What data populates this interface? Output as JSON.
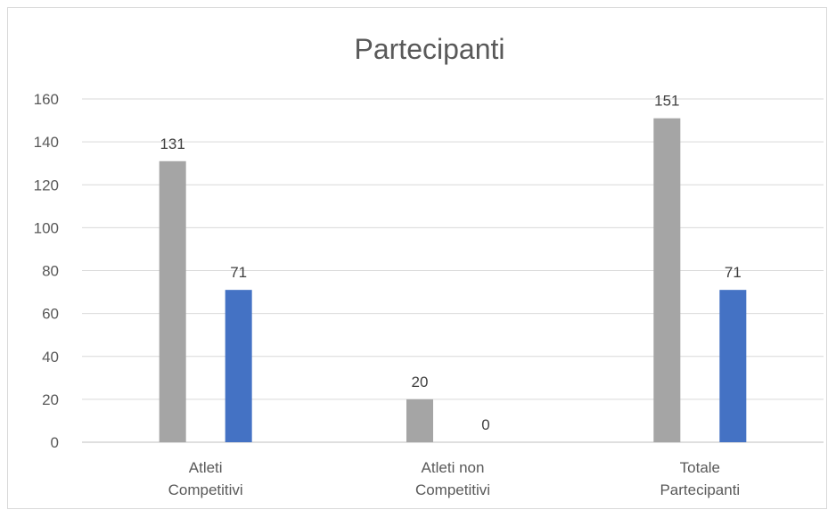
{
  "chart_data": {
    "type": "bar",
    "title": "Partecipanti",
    "categories": [
      [
        "Atleti",
        "Competitivi"
      ],
      [
        "Atleti non",
        "Competitivi"
      ],
      [
        "Totale",
        "Partecipanti"
      ]
    ],
    "series": [
      {
        "color": "#a5a5a5",
        "values": [
          131,
          20,
          151
        ]
      },
      {
        "color": "#4472c4",
        "values": [
          71,
          0,
          71
        ]
      }
    ],
    "ylim": [
      0,
      160
    ],
    "yticks": [
      0,
      20,
      40,
      60,
      80,
      100,
      120,
      140,
      160
    ],
    "grid": true,
    "legend": "none"
  }
}
